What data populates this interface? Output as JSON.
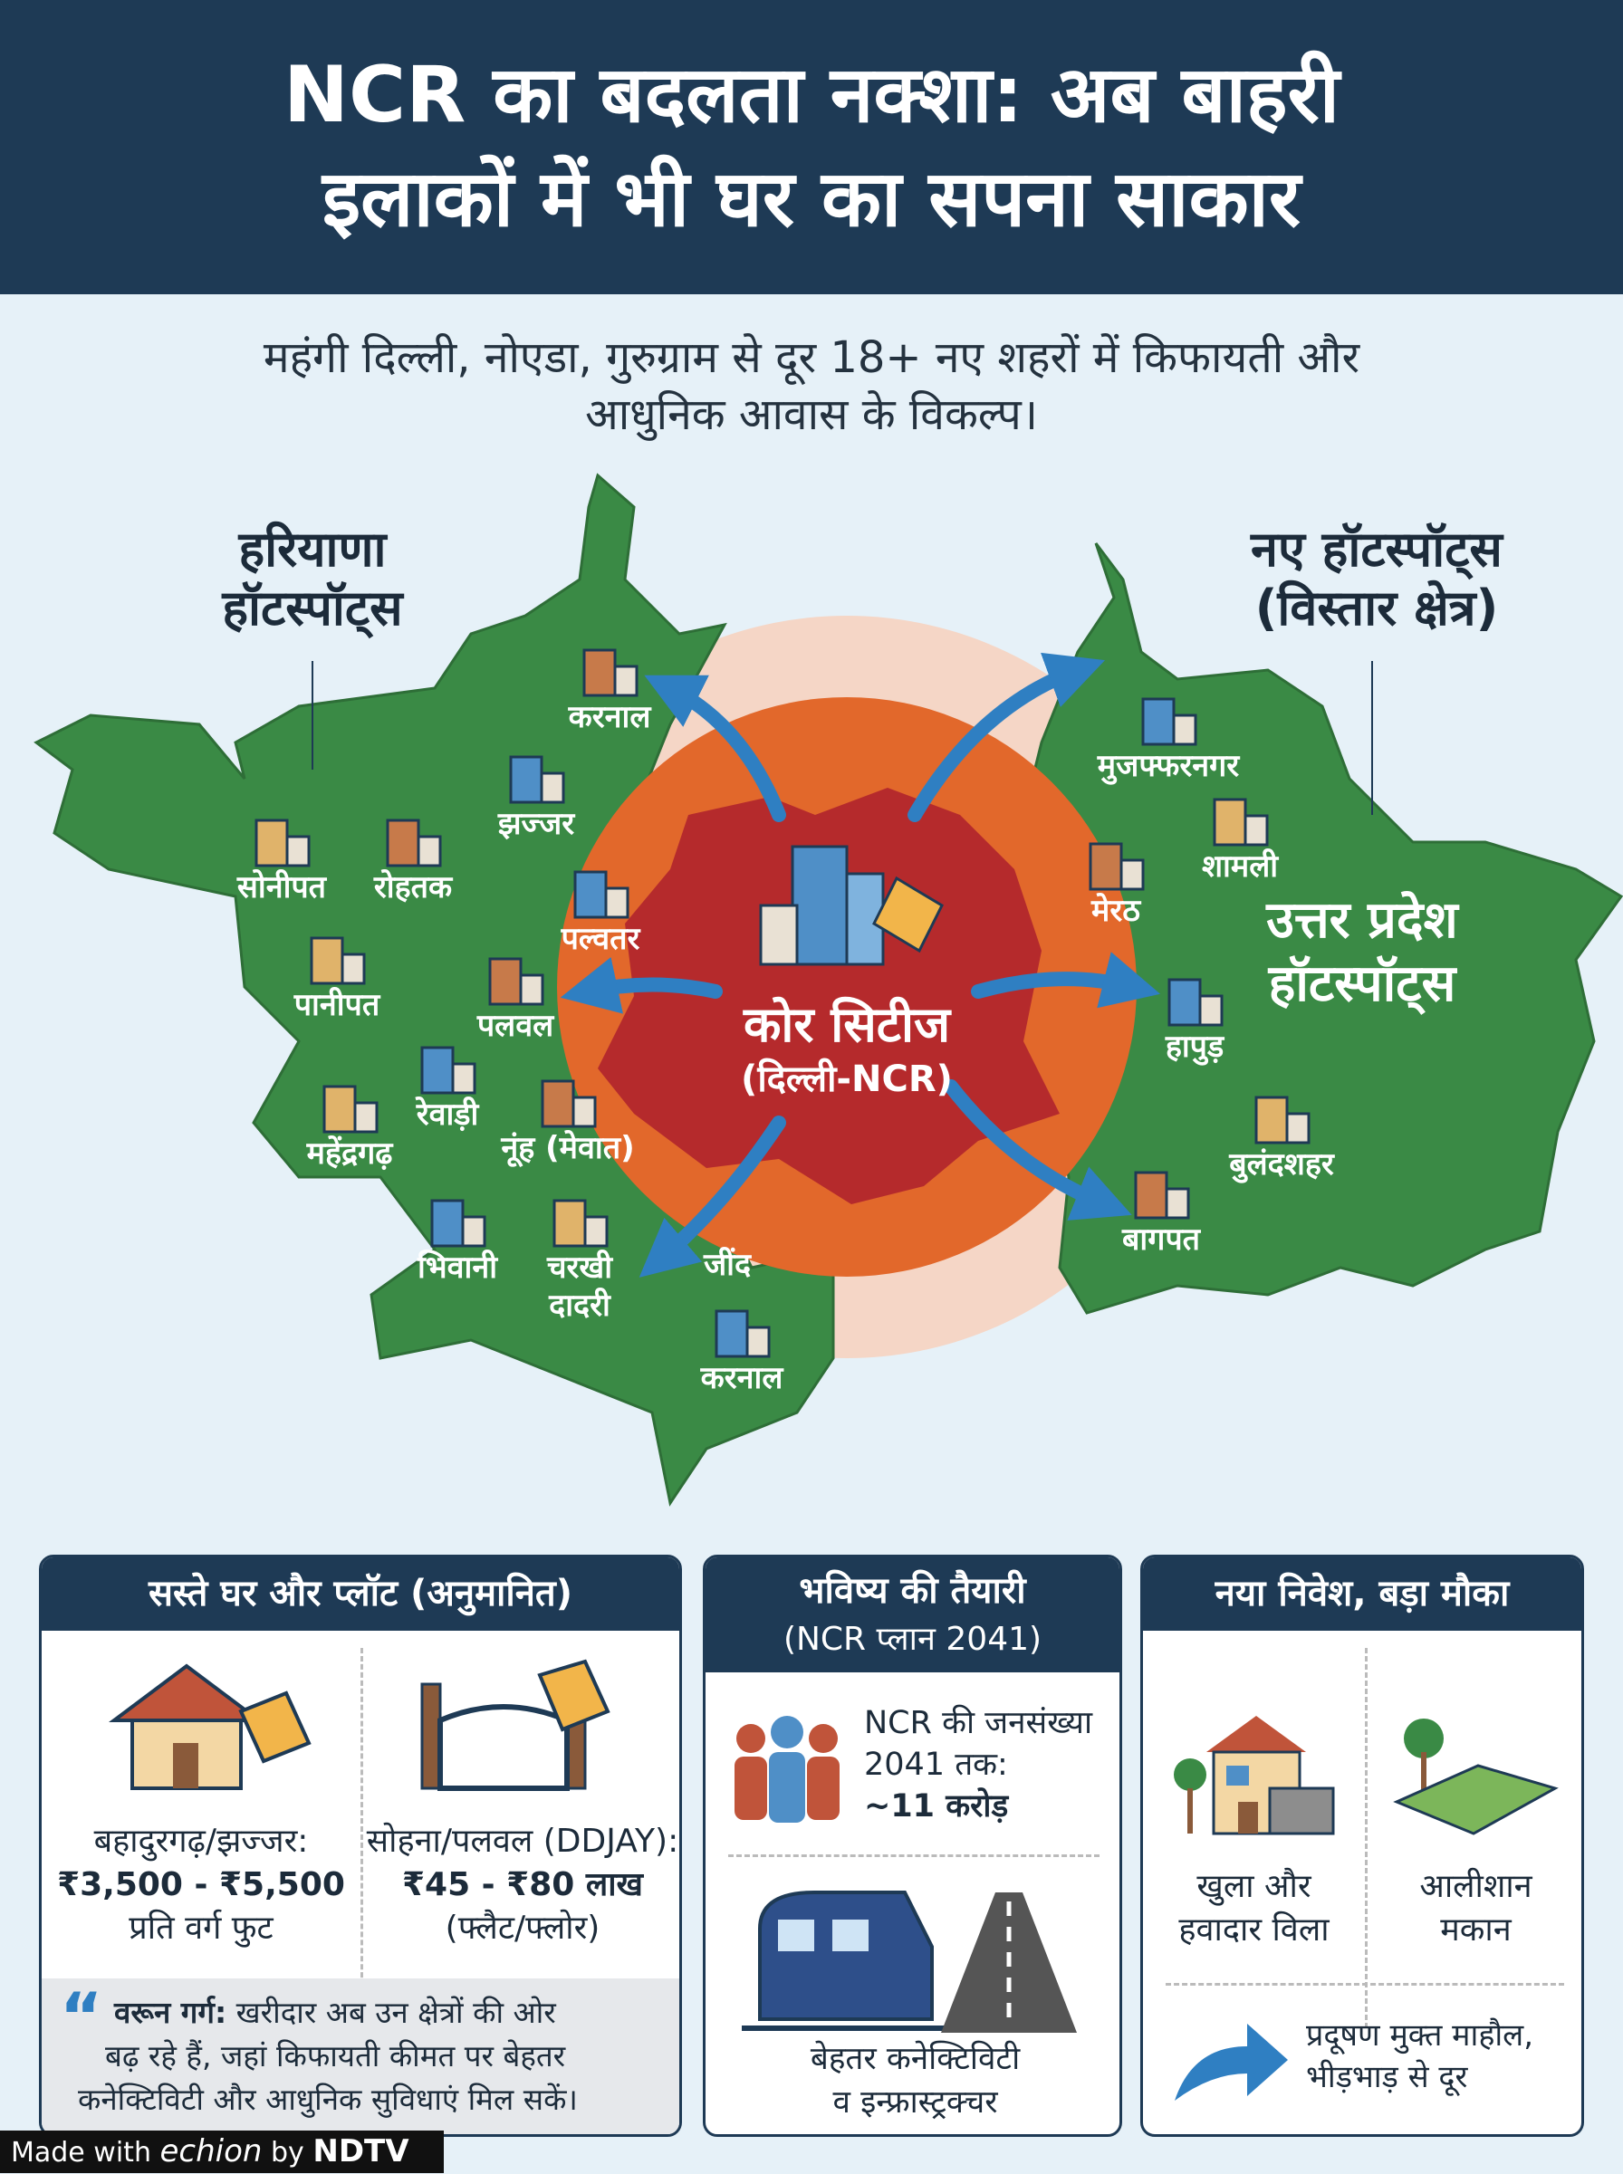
{
  "header": {
    "title_lines": [
      "NCR का बदलता नक्शा: अब बाहरी",
      "इलाकों में भी घर का सपना साकार"
    ]
  },
  "subtitle": {
    "lines": [
      "महंगी दिल्ली, नोएडा, गुरुग्राम से दूर 18+ नए शहरों में किफायती और",
      "आधुनिक आवास के विकल्प।"
    ]
  },
  "map": {
    "left_heading": [
      "हरियाणा",
      "हॉटस्पॉट्स"
    ],
    "right_heading": [
      "नए हॉटस्पॉट्स",
      "(विस्तार क्षेत्र)"
    ],
    "center": [
      "कोर सिटीज",
      "(दिल्ली-NCR)"
    ],
    "right_region": [
      "उत्तर प्रदेश",
      "हॉटस्पॉट्स"
    ],
    "haryana_cities": [
      [
        "करनाल"
      ],
      [
        "झज्जर"
      ],
      [
        "सोनीपत"
      ],
      [
        "रोहतक"
      ],
      [
        "पल्वतर"
      ],
      [
        "पानीपत"
      ],
      [
        "पलवल"
      ],
      [
        "रेवाड़ी"
      ],
      [
        "महेंद्रगढ़"
      ],
      [
        "नूंह (मेवात)"
      ],
      [
        "भिवानी"
      ],
      [
        "चरखी",
        "दादरी"
      ],
      [
        "जींद"
      ],
      [
        "करनाल"
      ]
    ],
    "up_cities": [
      [
        "मुजफ्फरनगर"
      ],
      [
        "शामली"
      ],
      [
        "मेरठ"
      ],
      [
        "हापुड़"
      ],
      [
        "बुलंदशहर"
      ],
      [
        "बागपत"
      ]
    ]
  },
  "panels": {
    "prices": {
      "title": "सस्ते घर और प्लॉट (अनुमानित)",
      "items": [
        [
          "बहादुरगढ़/झज्जर:",
          "₹3,500 - ₹5,500",
          "प्रति वर्ग फुट"
        ],
        [
          "सोहना/पलवल (DDJAY):",
          "₹45 - ₹80 लाख",
          "(फ्लैट/फ्लोर)"
        ]
      ],
      "quote": {
        "speaker": "वरून गर्ग:",
        "lines": [
          "खरीदार अब उन क्षेत्रों की ओर",
          "बढ़ रहे हैं, जहां किफायती कीमत पर बेहतर",
          "कनेक्टिविटी और आधुनिक सुविधाएं मिल सकें।"
        ]
      }
    },
    "future": {
      "title_lines": [
        "भविष्य की तैयारी",
        "(NCR प्लान 2041)"
      ],
      "population": [
        "NCR की जनसंख्या",
        "2041 तक:",
        "~11 करोड़"
      ],
      "connectivity": [
        "बेहतर कनेक्टिविटी",
        "व इन्फ्रास्ट्रक्चर"
      ]
    },
    "investment": {
      "title": "नया निवेश, बड़ा मौका",
      "items": [
        [
          "खुला और",
          "हवादार विला"
        ],
        [
          "आलीशान",
          "मकान"
        ]
      ],
      "benefit": [
        "प्रदूषण मुक्त माहौल,",
        "भीड़भाड़ से दूर"
      ]
    }
  },
  "footer": {
    "made_with": "Made with",
    "brand": "echion",
    "by": "by",
    "partner": "NDTV"
  }
}
